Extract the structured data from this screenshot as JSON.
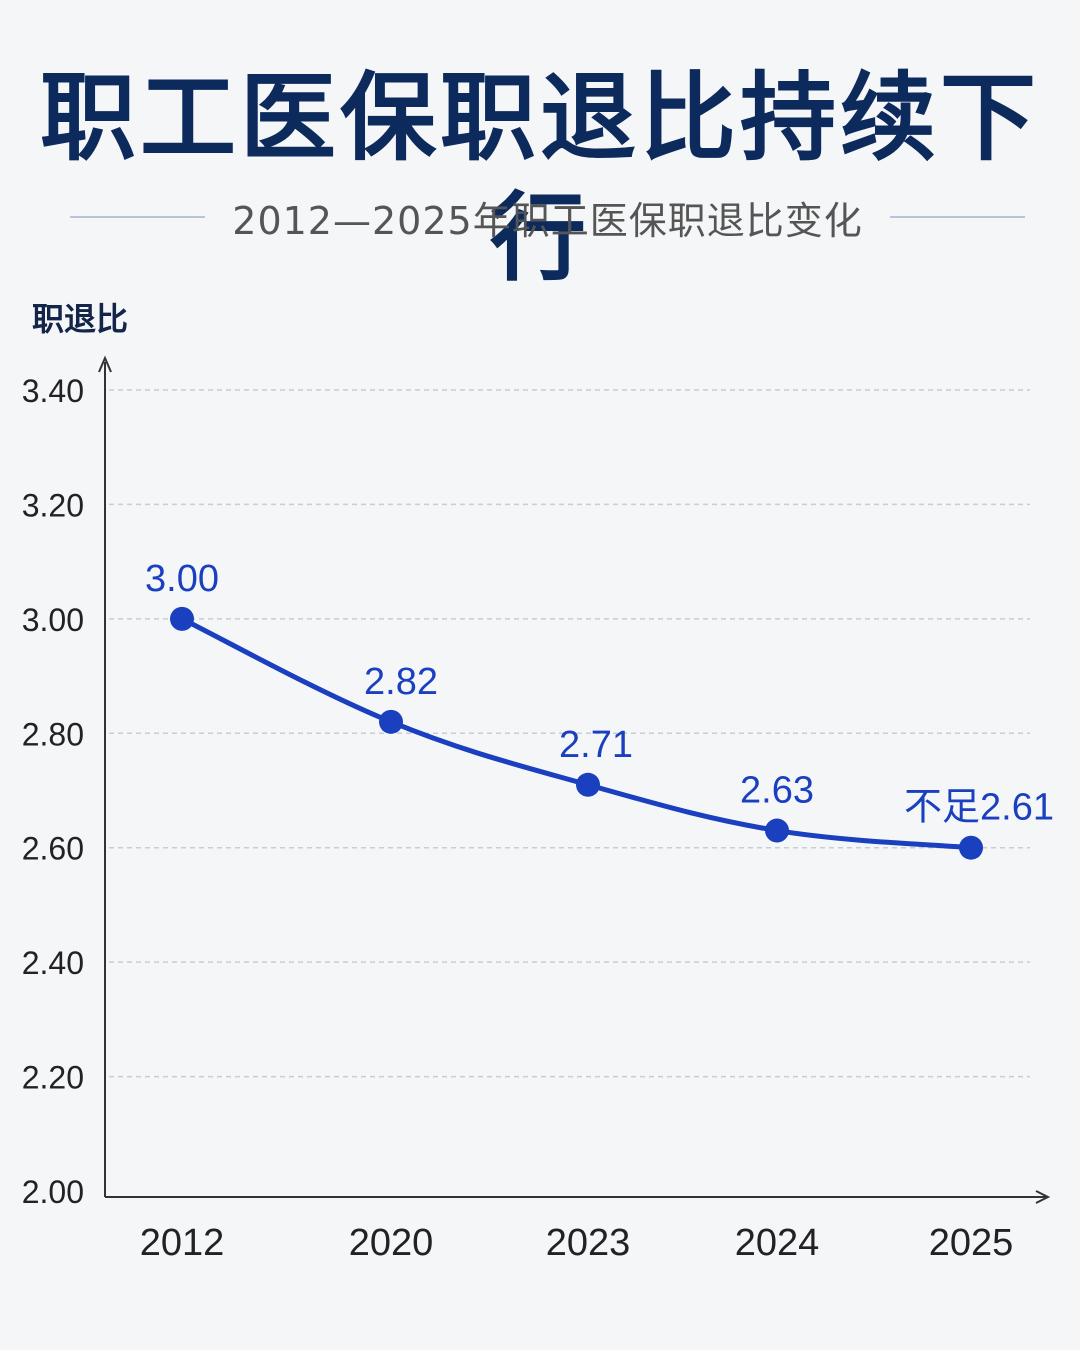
{
  "title": "职工医保职退比持续下行",
  "subtitle": "2012—2025年职工医保职退比变化",
  "colors": {
    "background": "#f5f6f8",
    "title": "#0d2a5c",
    "line": "#1a3fbf",
    "axis": "#333333",
    "grid": "#c8ccd4"
  },
  "chart_data": {
    "type": "line",
    "ylabel": "职退比",
    "xlabel": "",
    "categories": [
      "2012",
      "2020",
      "2023",
      "2024",
      "2025"
    ],
    "values": [
      3.0,
      2.82,
      2.71,
      2.63,
      2.6
    ],
    "data_labels": [
      "3.00",
      "2.82",
      "2.71",
      "2.63",
      "不足2.61"
    ],
    "ylim": [
      2.0,
      3.4
    ],
    "yticks": [
      2.0,
      2.2,
      2.4,
      2.6,
      2.8,
      3.0,
      3.2,
      3.4
    ],
    "ytick_labels": [
      "2.00",
      "2.20",
      "2.40",
      "2.60",
      "2.80",
      "3.00",
      "3.20",
      "3.40"
    ],
    "grid": true,
    "grid_style": "dashed"
  }
}
